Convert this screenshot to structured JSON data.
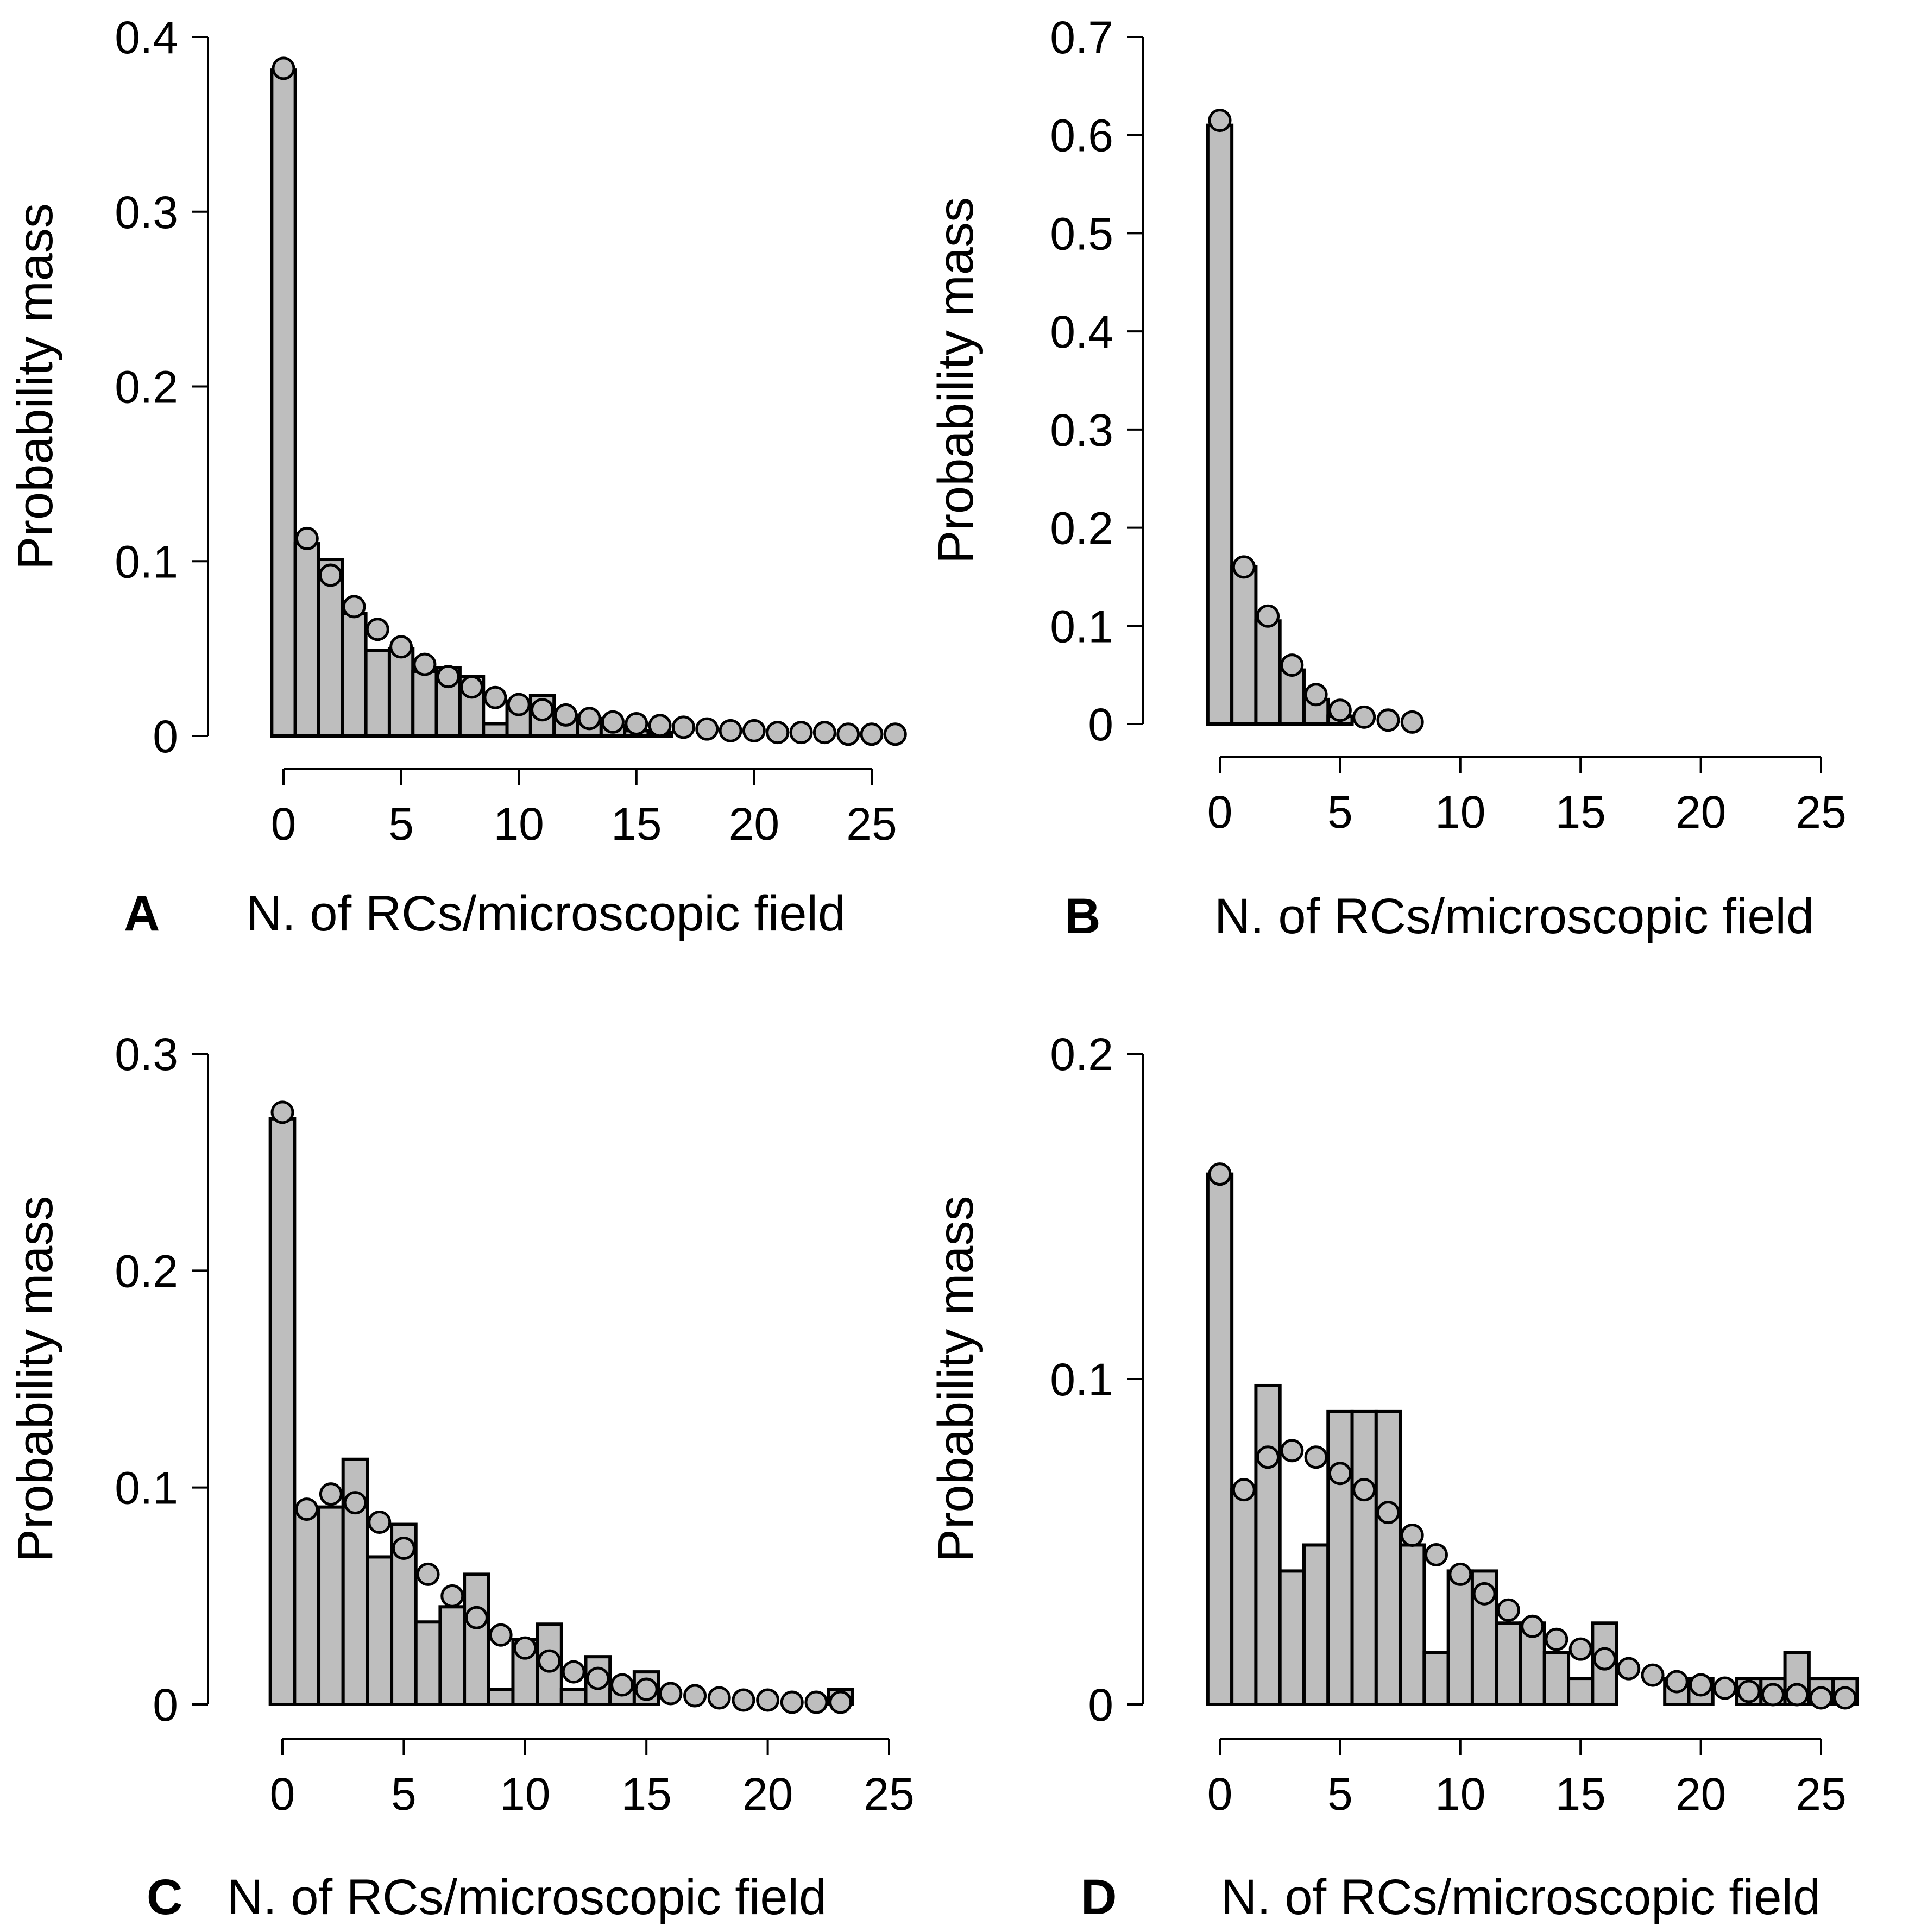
{
  "chart_data": [
    {
      "type": "bar",
      "panel": "A",
      "xlabel": "N. of RCs/microscopic field",
      "ylabel": "Probability mass",
      "xlim": [
        0,
        25
      ],
      "ylim": [
        0,
        0.4
      ],
      "xticks": [
        "0",
        "5",
        "10",
        "15",
        "20",
        "25"
      ],
      "yticks": [
        "0",
        "0.1",
        "0.2",
        "0.3",
        "0.4"
      ],
      "grid": false,
      "series": [
        {
          "kind": "bar",
          "x": [
            0,
            1,
            2,
            3,
            4,
            5,
            6,
            7,
            8,
            9,
            10,
            11,
            12,
            13,
            14,
            15,
            16
          ],
          "values": [
            0.381,
            0.11,
            0.101,
            0.07,
            0.049,
            0.05,
            0.037,
            0.039,
            0.034,
            0.007,
            0.02,
            0.023,
            0.012,
            0.01,
            0.006,
            0.003,
            0.002
          ]
        },
        {
          "kind": "points",
          "x": [
            0,
            1,
            2,
            3,
            4,
            5,
            6,
            7,
            8,
            9,
            10,
            11,
            12,
            13,
            14,
            15,
            16,
            17,
            18,
            19,
            20,
            21,
            22,
            23,
            24,
            25,
            26
          ],
          "values": [
            0.382,
            0.113,
            0.092,
            0.074,
            0.061,
            0.051,
            0.041,
            0.034,
            0.028,
            0.022,
            0.018,
            0.015,
            0.012,
            0.01,
            0.008,
            0.007,
            0.006,
            0.005,
            0.004,
            0.003,
            0.003,
            0.002,
            0.002,
            0.002,
            0.001,
            0.001,
            0.001
          ]
        }
      ]
    },
    {
      "type": "bar",
      "panel": "B",
      "xlabel": "N. of RCs/microscopic field",
      "ylabel": "Probability mass",
      "xlim": [
        0,
        25
      ],
      "ylim": [
        0,
        0.7
      ],
      "xticks": [
        "0",
        "5",
        "10",
        "15",
        "20",
        "25"
      ],
      "yticks": [
        "0",
        "0.1",
        "0.2",
        "0.3",
        "0.4",
        "0.5",
        "0.6",
        "0.7"
      ],
      "grid": false,
      "series": [
        {
          "kind": "bar",
          "x": [
            0,
            1,
            2,
            3,
            4,
            5
          ],
          "values": [
            0.61,
            0.16,
            0.105,
            0.055,
            0.025,
            0.008
          ]
        },
        {
          "kind": "points",
          "x": [
            0,
            1,
            2,
            3,
            4,
            5,
            6,
            7,
            8
          ],
          "values": [
            0.615,
            0.16,
            0.11,
            0.06,
            0.03,
            0.014,
            0.007,
            0.004,
            0.002
          ]
        }
      ]
    },
    {
      "type": "bar",
      "panel": "C",
      "xlabel": "N. of RCs/microscopic field",
      "ylabel": "Probability mass",
      "xlim": [
        0,
        25
      ],
      "ylim": [
        0,
        0.3
      ],
      "xticks": [
        "0",
        "5",
        "10",
        "15",
        "20",
        "25"
      ],
      "yticks": [
        "0",
        "0.1",
        "0.2",
        "0.3"
      ],
      "grid": false,
      "series": [
        {
          "kind": "bar",
          "x": [
            0,
            1,
            2,
            3,
            4,
            5,
            6,
            7,
            8,
            9,
            10,
            11,
            12,
            13,
            14,
            15,
            16,
            17,
            18,
            19,
            20,
            21,
            22,
            23
          ],
          "values": [
            0.27,
            0.089,
            0.091,
            0.113,
            0.068,
            0.083,
            0.038,
            0.045,
            0.06,
            0.007,
            0.03,
            0.037,
            0.007,
            0.022,
            0.007,
            0.015,
            0,
            0,
            0,
            0,
            0,
            0,
            0,
            0.007
          ]
        },
        {
          "kind": "points",
          "x": [
            0,
            1,
            2,
            3,
            4,
            5,
            6,
            7,
            8,
            9,
            10,
            11,
            12,
            13,
            14,
            15,
            16,
            17,
            18,
            19,
            20,
            21,
            22,
            23
          ],
          "values": [
            0.273,
            0.09,
            0.097,
            0.093,
            0.084,
            0.072,
            0.06,
            0.05,
            0.04,
            0.032,
            0.026,
            0.02,
            0.015,
            0.012,
            0.009,
            0.007,
            0.005,
            0.004,
            0.003,
            0.002,
            0.002,
            0.001,
            0.001,
            0.001
          ]
        }
      ]
    },
    {
      "type": "bar",
      "panel": "D",
      "xlabel": "N. of RCs/microscopic field",
      "ylabel": "Probability mass",
      "xlim": [
        0,
        25
      ],
      "ylim": [
        0,
        0.2
      ],
      "xticks": [
        "0",
        "5",
        "10",
        "15",
        "20",
        "25"
      ],
      "yticks": [
        "0",
        "0.1",
        "0.2"
      ],
      "grid": false,
      "series": [
        {
          "kind": "bar",
          "x": [
            0,
            1,
            2,
            3,
            4,
            5,
            6,
            7,
            8,
            9,
            10,
            11,
            12,
            13,
            14,
            15,
            16,
            17,
            18,
            19,
            20,
            21,
            22,
            23,
            24,
            25,
            26
          ],
          "values": [
            0.163,
            0.066,
            0.098,
            0.041,
            0.049,
            0.09,
            0.09,
            0.09,
            0.049,
            0.016,
            0.041,
            0.041,
            0.025,
            0.025,
            0.016,
            0.008,
            0.025,
            0,
            0,
            0.008,
            0.008,
            0,
            0.008,
            0.008,
            0.016,
            0.008,
            0.008
          ]
        },
        {
          "kind": "points",
          "x": [
            0,
            1,
            2,
            3,
            4,
            5,
            6,
            7,
            8,
            9,
            10,
            11,
            12,
            13,
            14,
            15,
            16,
            17,
            18,
            19,
            20,
            21,
            22,
            23,
            24,
            25,
            26
          ],
          "values": [
            0.163,
            0.066,
            0.076,
            0.078,
            0.076,
            0.071,
            0.066,
            0.059,
            0.052,
            0.046,
            0.04,
            0.034,
            0.029,
            0.024,
            0.02,
            0.017,
            0.014,
            0.011,
            0.009,
            0.007,
            0.006,
            0.005,
            0.004,
            0.003,
            0.003,
            0.002,
            0.002
          ]
        }
      ]
    }
  ]
}
